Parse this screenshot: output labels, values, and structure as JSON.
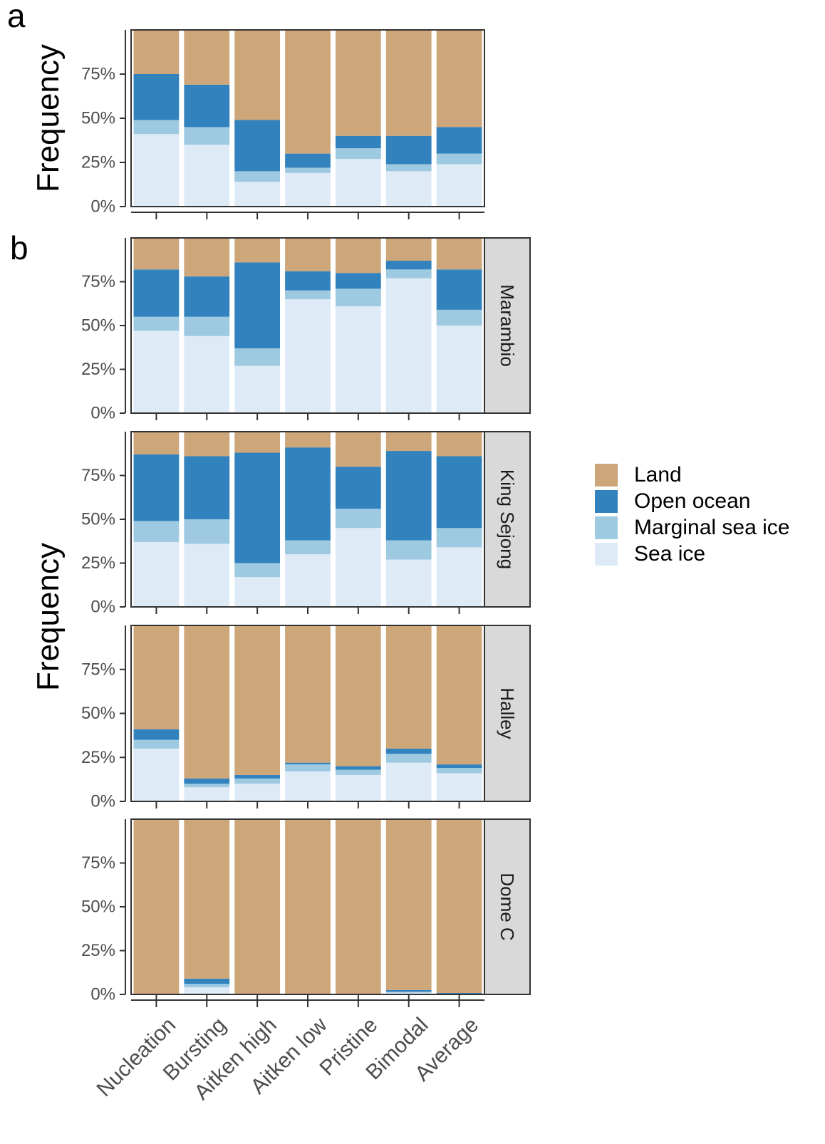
{
  "panel_labels": {
    "a": "a",
    "b": "b"
  },
  "ylabel": "Frequency",
  "legend": [
    {
      "key": "land",
      "label": "Land",
      "color": "#CDA67A"
    },
    {
      "key": "ocean",
      "label": "Open ocean",
      "color": "#3282BD"
    },
    {
      "key": "marginal",
      "label": "Marginal sea ice",
      "color": "#9ECAE1"
    },
    {
      "key": "seaice",
      "label": "Sea ice",
      "color": "#DEEBF7"
    }
  ],
  "chart_data": [
    {
      "type": "bar",
      "stacked": true,
      "panel": "a",
      "ylabel": "Frequency",
      "ylim": [
        0,
        100
      ],
      "yticks": [
        "0%",
        "25%",
        "50%",
        "75%"
      ],
      "categories": [
        "Nucleation",
        "Bursting",
        "Aitken high",
        "Aitken low",
        "Pristine",
        "Bimodal",
        "Average"
      ],
      "series": [
        {
          "name": "Sea ice",
          "values": [
            41,
            35,
            14,
            19,
            27,
            20,
            24
          ]
        },
        {
          "name": "Marginal sea ice",
          "values": [
            8,
            10,
            6,
            3,
            6,
            4,
            6
          ]
        },
        {
          "name": "Open ocean",
          "values": [
            26,
            24,
            29,
            8,
            7,
            16,
            15
          ]
        },
        {
          "name": "Land",
          "values": [
            25,
            31,
            51,
            70,
            60,
            60,
            55
          ]
        }
      ]
    },
    {
      "type": "bar",
      "stacked": true,
      "panel": "b",
      "facet": "Marambio",
      "ylabel": "Frequency",
      "ylim": [
        0,
        100
      ],
      "yticks": [
        "0%",
        "25%",
        "50%",
        "75%"
      ],
      "categories": [
        "Nucleation",
        "Bursting",
        "Aitken high",
        "Aitken low",
        "Pristine",
        "Bimodal",
        "Average"
      ],
      "series": [
        {
          "name": "Sea ice",
          "values": [
            47,
            44,
            27,
            65,
            61,
            77,
            50
          ]
        },
        {
          "name": "Marginal sea ice",
          "values": [
            8,
            11,
            10,
            5,
            10,
            5,
            9
          ]
        },
        {
          "name": "Open ocean",
          "values": [
            27,
            23,
            49,
            11,
            9,
            5,
            23
          ]
        },
        {
          "name": "Land",
          "values": [
            18,
            22,
            14,
            19,
            20,
            13,
            18
          ]
        }
      ]
    },
    {
      "type": "bar",
      "stacked": true,
      "panel": "b",
      "facet": "King Sejong",
      "ylabel": "Frequency",
      "ylim": [
        0,
        100
      ],
      "yticks": [
        "0%",
        "25%",
        "50%",
        "75%"
      ],
      "categories": [
        "Nucleation",
        "Bursting",
        "Aitken high",
        "Aitken low",
        "Pristine",
        "Bimodal",
        "Average"
      ],
      "series": [
        {
          "name": "Sea ice",
          "values": [
            37,
            36,
            17,
            30,
            45,
            27,
            34
          ]
        },
        {
          "name": "Marginal sea ice",
          "values": [
            12,
            14,
            8,
            8,
            11,
            11,
            11
          ]
        },
        {
          "name": "Open ocean",
          "values": [
            38,
            36,
            63,
            53,
            24,
            51,
            41
          ]
        },
        {
          "name": "Land",
          "values": [
            13,
            14,
            12,
            9,
            20,
            11,
            14
          ]
        }
      ]
    },
    {
      "type": "bar",
      "stacked": true,
      "panel": "b",
      "facet": "Halley",
      "ylabel": "Frequency",
      "ylim": [
        0,
        100
      ],
      "yticks": [
        "0%",
        "25%",
        "50%",
        "75%"
      ],
      "categories": [
        "Nucleation",
        "Bursting",
        "Aitken high",
        "Aitken low",
        "Pristine",
        "Bimodal",
        "Average"
      ],
      "series": [
        {
          "name": "Sea ice",
          "values": [
            30,
            8,
            10,
            17,
            15,
            22,
            16
          ]
        },
        {
          "name": "Marginal sea ice",
          "values": [
            5,
            2,
            3,
            4,
            3,
            5,
            3
          ]
        },
        {
          "name": "Open ocean",
          "values": [
            6,
            3,
            2,
            1,
            2,
            3,
            2
          ]
        },
        {
          "name": "Land",
          "values": [
            59,
            87,
            85,
            78,
            80,
            70,
            79
          ]
        }
      ]
    },
    {
      "type": "bar",
      "stacked": true,
      "panel": "b",
      "facet": "Dome C",
      "ylabel": "Frequency",
      "ylim": [
        0,
        100
      ],
      "yticks": [
        "0%",
        "25%",
        "50%",
        "75%"
      ],
      "categories": [
        "Nucleation",
        "Bursting",
        "Aitken high",
        "Aitken low",
        "Pristine",
        "Bimodal",
        "Average"
      ],
      "series": [
        {
          "name": "Sea ice",
          "values": [
            0,
            4,
            0,
            0,
            0,
            1,
            0
          ]
        },
        {
          "name": "Marginal sea ice",
          "values": [
            0,
            2,
            0,
            0,
            0,
            0.5,
            0.3
          ]
        },
        {
          "name": "Open ocean",
          "values": [
            0,
            3,
            0,
            0,
            0,
            1,
            0.5
          ]
        },
        {
          "name": "Land",
          "values": [
            100,
            91,
            100,
            100,
            100,
            97.5,
            99.2
          ]
        }
      ]
    }
  ]
}
